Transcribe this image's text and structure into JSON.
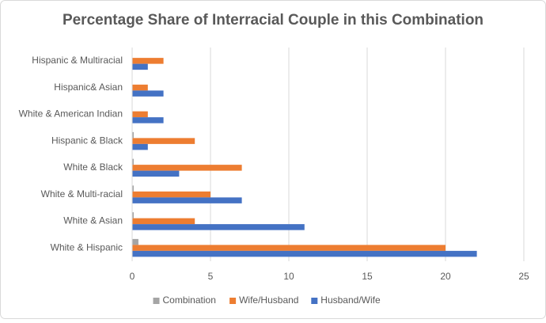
{
  "chart_data": {
    "type": "hbar",
    "title": "Percentage Share of Interracial Couple in this Combination",
    "categories": [
      "White & Hispanic",
      "White & Asian",
      "White & Multi-racial",
      "White & Black",
      "Hispanic & Black",
      "White & American Indian",
      "Hispanic& Asian",
      "Hispanic & Multiracial"
    ],
    "series": [
      {
        "name": "Combination",
        "color": "#a5a5a5",
        "values": [
          0.4,
          0.1,
          0.1,
          0.1,
          0.1,
          0,
          0,
          0
        ]
      },
      {
        "name": "Wife/Husband",
        "color": "#ed7d31",
        "values": [
          20,
          4,
          5,
          7,
          4,
          1,
          1,
          2
        ]
      },
      {
        "name": "Husband/Wife",
        "color": "#4472c4",
        "values": [
          22,
          11,
          7,
          3,
          1,
          2,
          2,
          1
        ]
      }
    ],
    "xlim": [
      0,
      25
    ],
    "xticks": [
      0,
      5,
      10,
      15,
      20,
      25
    ],
    "grid": true,
    "legend": "bottom"
  }
}
